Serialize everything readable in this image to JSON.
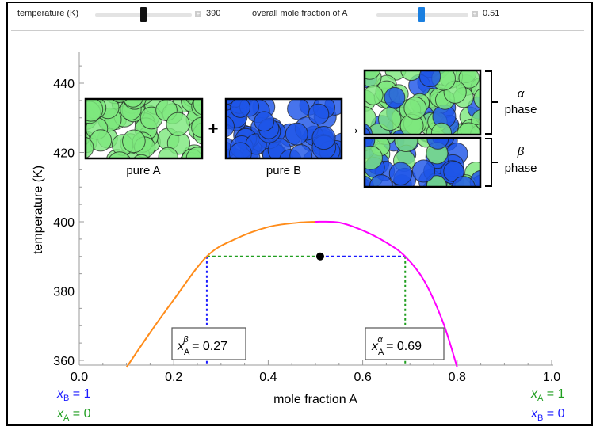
{
  "controls": {
    "temperature": {
      "label": "temperature (K)",
      "value": "390",
      "fraction": 0.5
    },
    "mole_fraction": {
      "label": "overall mole fraction of A",
      "value": "0.51",
      "fraction": 0.51
    }
  },
  "colors": {
    "orange": "#ff8c1a",
    "magenta": "#ff00ff",
    "green": "#1f9e1f",
    "blue": "#1a1aff",
    "thumb_blue": "#1a7fe0"
  },
  "chart_data": {
    "type": "line",
    "xlabel": "mole fraction A",
    "ylabel": "temperature (K)",
    "xlim": [
      0,
      1
    ],
    "ylim": [
      358,
      449
    ],
    "x_ticks": [
      "0.0",
      "0.2",
      "0.4",
      "0.6",
      "0.8",
      "1.0"
    ],
    "y_ticks": [
      "360",
      "380",
      "400",
      "420",
      "440"
    ],
    "series": [
      {
        "name": "beta branch",
        "color": "orange",
        "points": [
          [
            0.1,
            358
          ],
          [
            0.15,
            368
          ],
          [
            0.2,
            377.5
          ],
          [
            0.27,
            390
          ],
          [
            0.33,
            395
          ],
          [
            0.4,
            398.5
          ],
          [
            0.46,
            399.7
          ],
          [
            0.5,
            400
          ]
        ]
      },
      {
        "name": "alpha branch",
        "color": "magenta",
        "points": [
          [
            0.5,
            400
          ],
          [
            0.55,
            399.8
          ],
          [
            0.6,
            397.5
          ],
          [
            0.65,
            394
          ],
          [
            0.69,
            390
          ],
          [
            0.73,
            383
          ],
          [
            0.77,
            371
          ],
          [
            0.8,
            358
          ]
        ]
      }
    ],
    "point": {
      "x": 0.51,
      "y": 390
    },
    "tie_line": {
      "x_beta": 0.27,
      "x_alpha": 0.69,
      "T": 390
    },
    "annotations": {
      "beta_label": {
        "sym": "x",
        "sub": "A",
        "sup": "β",
        "text": " = 0.27"
      },
      "alpha_label": {
        "sym": "x",
        "sub": "A",
        "sup": "α",
        "text": " = 0.69"
      }
    }
  },
  "insets": {
    "pure_a": "pure A",
    "pure_b": "pure B",
    "plus": "+",
    "arrow": "→",
    "alpha_sym": "α",
    "beta_sym": "β",
    "phase": "phase",
    "alpha_green_fraction": 0.69,
    "beta_green_fraction": 0.27
  },
  "corner_labels": {
    "left_xb": "x",
    "left_xb_sub": "B",
    "left_xb_val": " = 1",
    "left_xa": "x",
    "left_xa_sub": "A",
    "left_xa_val": " = 0",
    "right_xa": "x",
    "right_xa_sub": "A",
    "right_xa_val": " = 1",
    "right_xb": "x",
    "right_xb_sub": "B",
    "right_xb_val": " = 0"
  }
}
